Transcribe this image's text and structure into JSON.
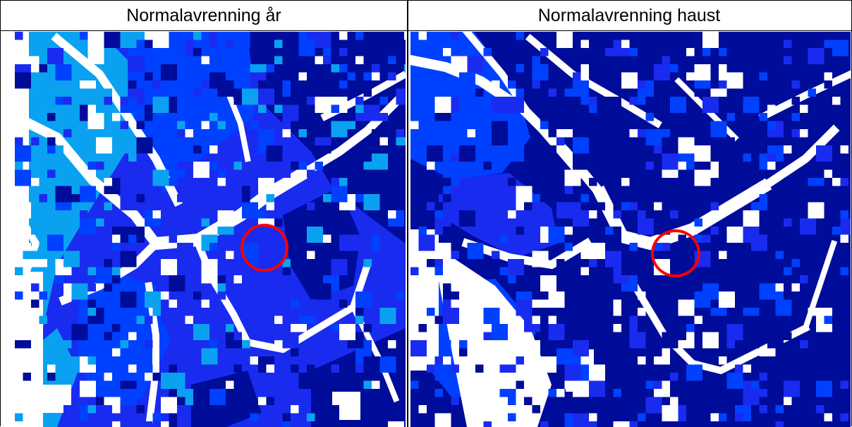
{
  "panels": [
    {
      "title": "Normalavrenning år",
      "legend_colors": [
        "#ffffff",
        "#0aa2f0",
        "#0040ff",
        "#1a2bf0",
        "#000c9a"
      ],
      "marker_color": "#ff0000"
    },
    {
      "title": "Normalavrenning haust",
      "legend_colors": [
        "#ffffff",
        "#0040ff",
        "#1a2bf0",
        "#000c9a"
      ],
      "marker_color": "#ff0000"
    }
  ]
}
